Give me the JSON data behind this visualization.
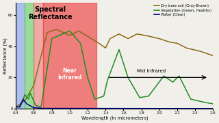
{
  "title": "Spectral\nReflectance",
  "xlabel": "Wavelength (in micrometers)",
  "ylabel": "Reflectance (%)",
  "xlim": [
    0.4,
    2.6
  ],
  "ylim": [
    0,
    68
  ],
  "yticks": [
    0,
    20,
    40,
    60
  ],
  "xticks": [
    0.4,
    0.6,
    0.8,
    1.0,
    1.2,
    1.4,
    1.6,
    1.8,
    2.0,
    2.2,
    2.4,
    2.6
  ],
  "bg_color": "#f0efea",
  "soil_color": "#8B6914",
  "veg_color": "#228B22",
  "water_color": "#00008B",
  "near_ir_label": "Near\nInfrared",
  "mid_ir_label": "Mid Infrared",
  "legend_soil": "Dry bare soil (Gray-Brown)",
  "legend_veg": "Vegetation (Green, Healthy)",
  "legend_water": "Water (Clear)"
}
